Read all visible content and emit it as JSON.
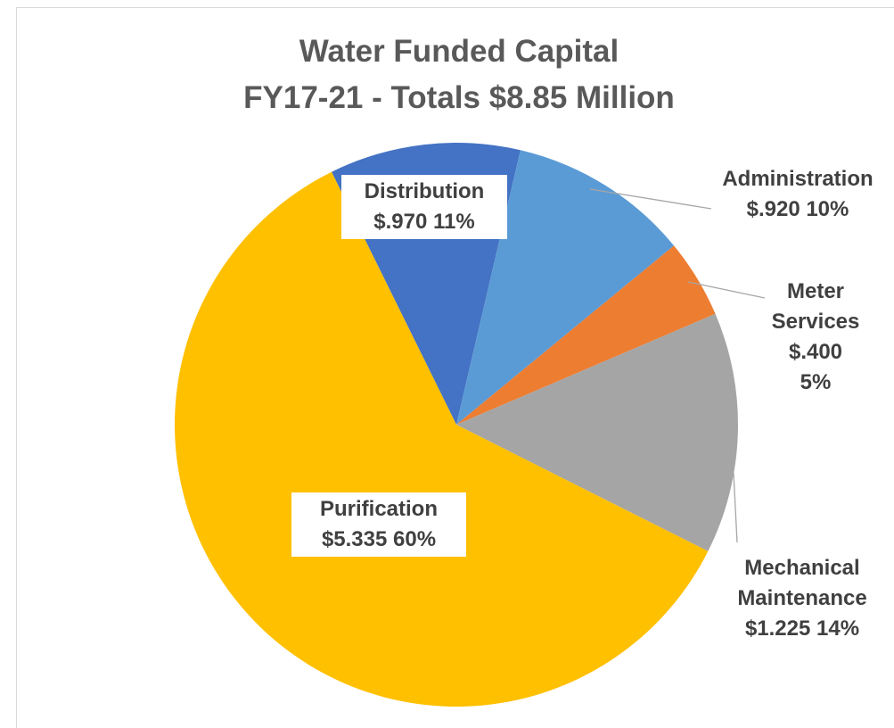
{
  "chart_data": {
    "type": "pie",
    "title": "Water Funded Capital",
    "subtitle": "FY17-21 - Totals $8.85 Million",
    "categories": [
      "Distribution",
      "Administration",
      "Meter Services",
      "Mechanical Maintenance",
      "Purification"
    ],
    "values": [
      0.97,
      0.92,
      0.4,
      1.225,
      5.335
    ],
    "value_labels": [
      "$.970 11%",
      "$.920 10%",
      "$.400 5%",
      "$1.225 14%",
      "$5.335 60%"
    ],
    "colors": [
      "#4472c4",
      "#5b9bd5",
      "#ed7d31",
      "#a5a5a5",
      "#ffc000"
    ]
  }
}
